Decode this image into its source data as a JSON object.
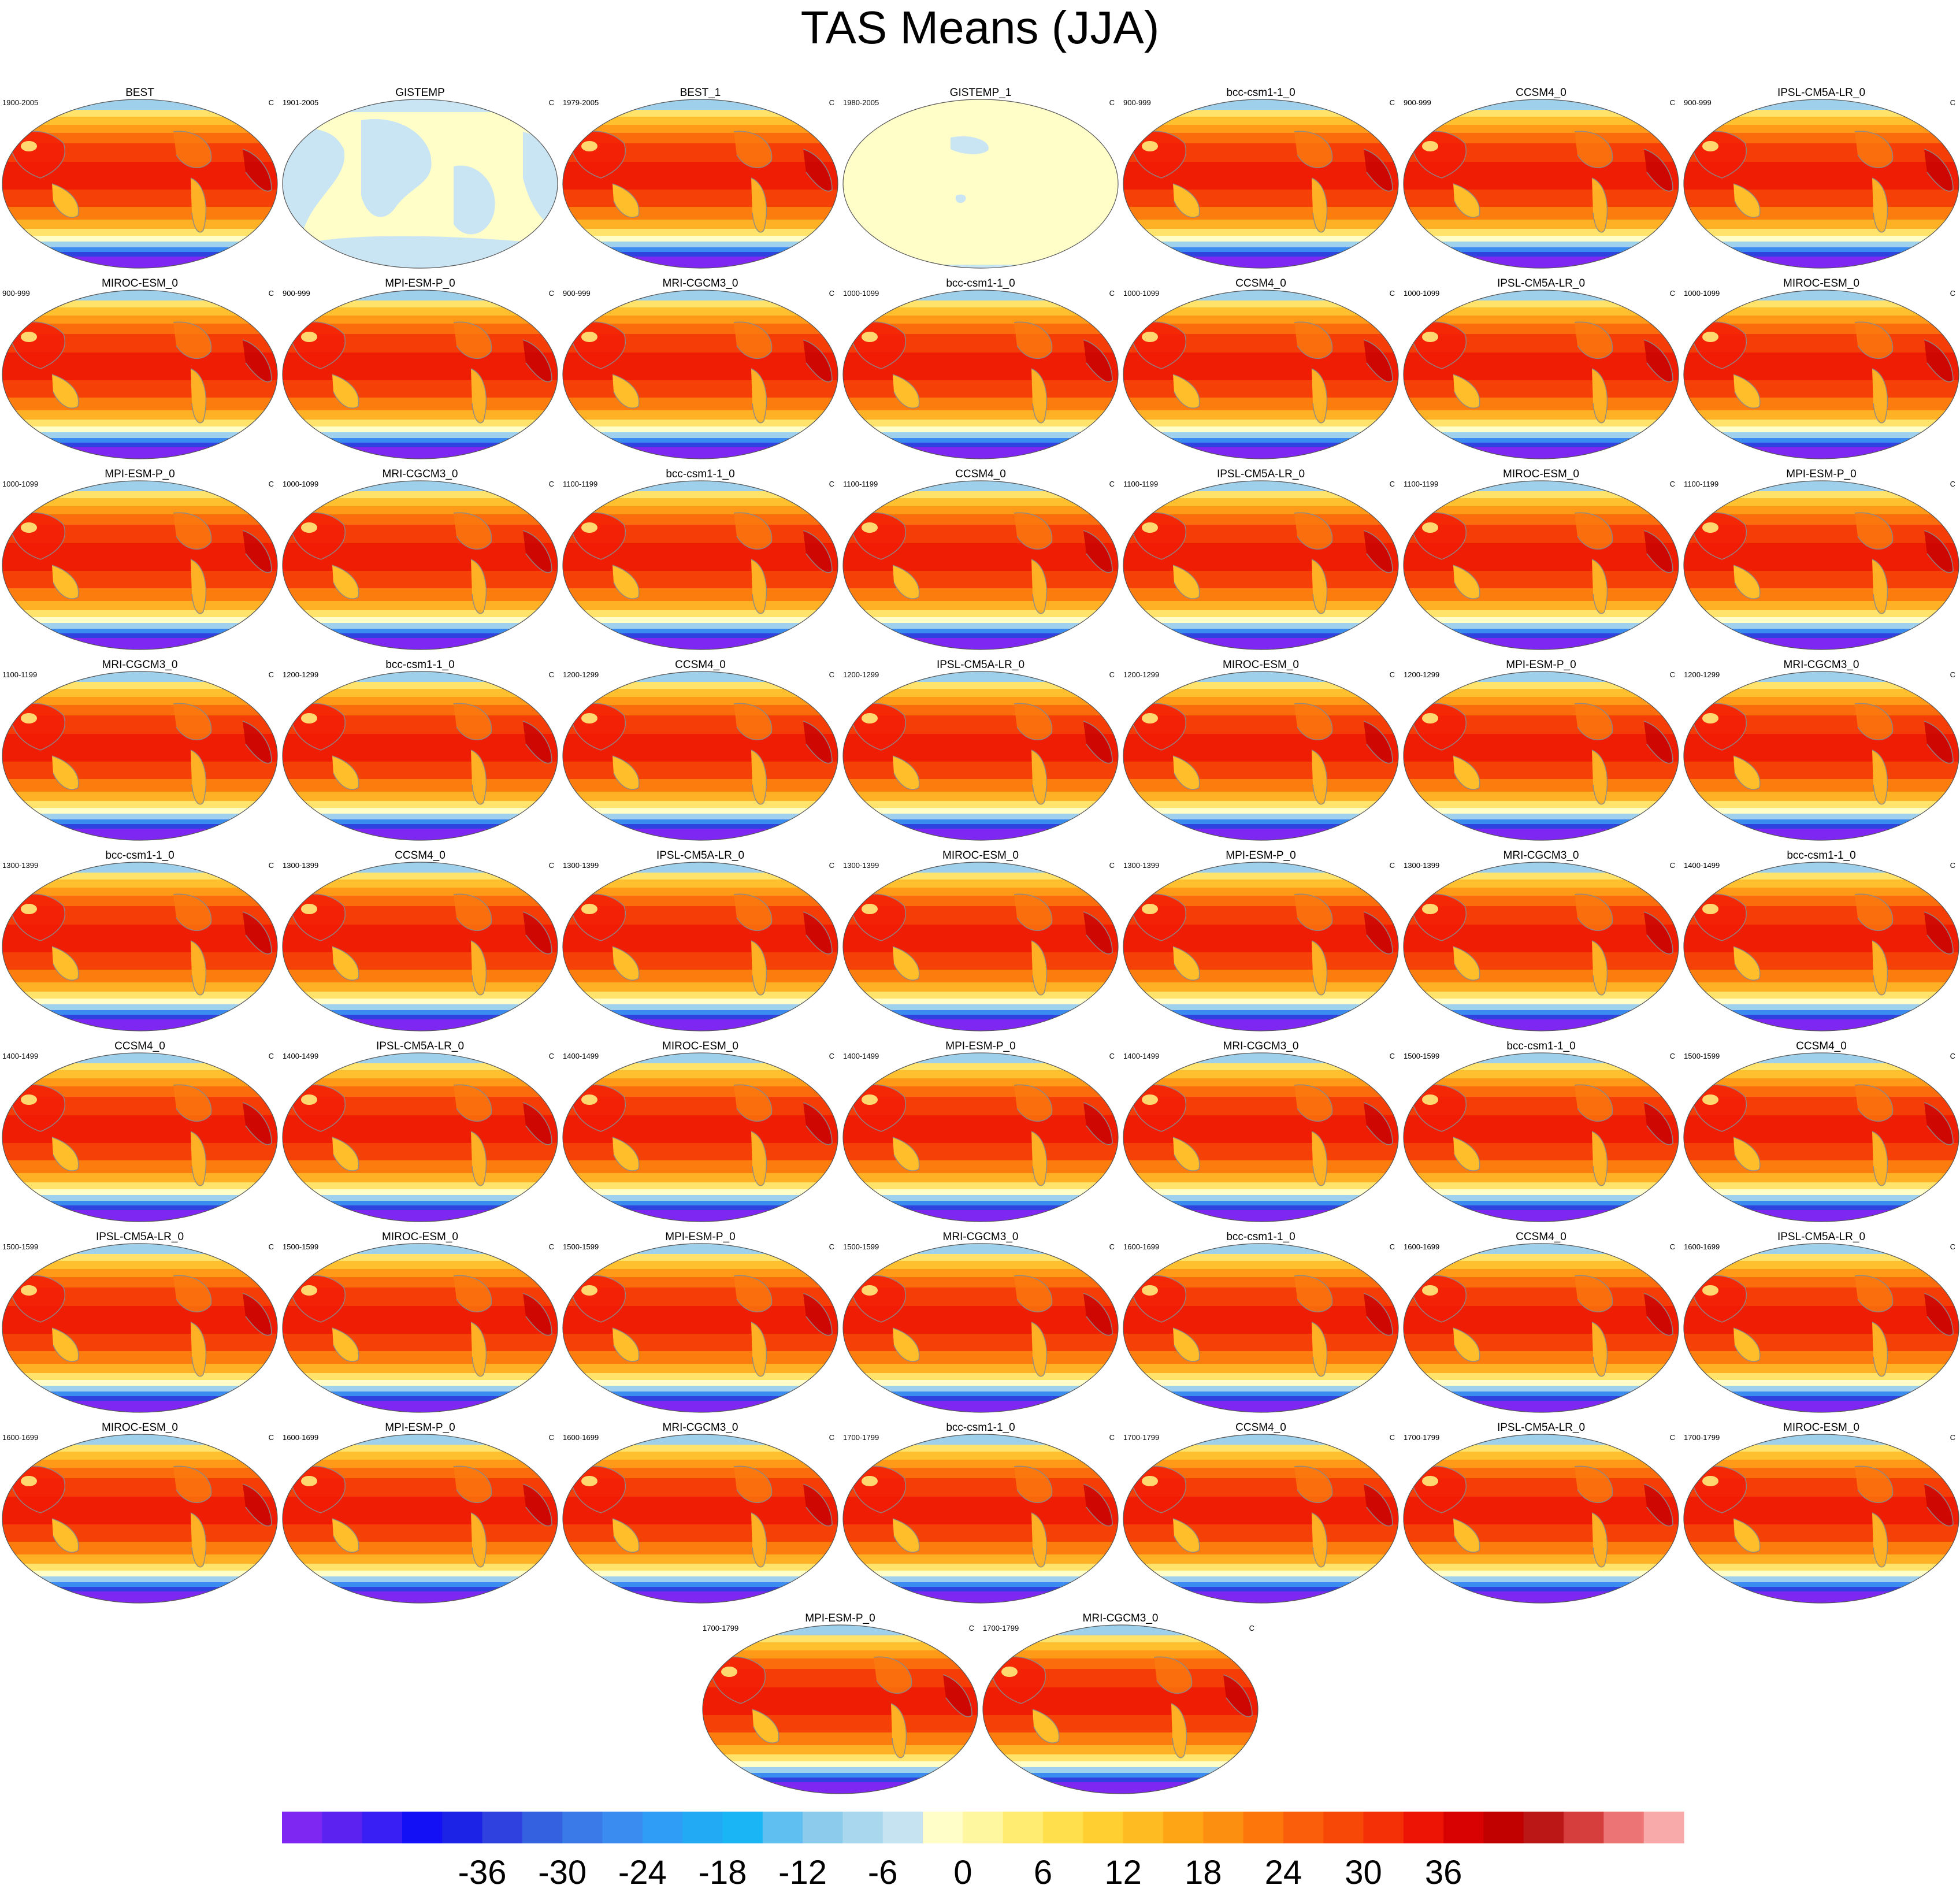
{
  "title": "TAS Means (JJA)",
  "units": "C",
  "panels": [
    {
      "name": "BEST",
      "period": "1900-2005",
      "style": "obs"
    },
    {
      "name": "GISTEMP",
      "period": "1901-2005",
      "style": "gis"
    },
    {
      "name": "BEST_1",
      "period": "1979-2005",
      "style": "obs"
    },
    {
      "name": "GISTEMP_1",
      "period": "1980-2005",
      "style": "gis2"
    },
    {
      "name": "bcc-csm1-1_0",
      "period": "900-999",
      "style": "model"
    },
    {
      "name": "CCSM4_0",
      "period": "900-999",
      "style": "model"
    },
    {
      "name": "IPSL-CM5A-LR_0",
      "period": "900-999",
      "style": "model"
    },
    {
      "name": "MIROC-ESM_0",
      "period": "900-999",
      "style": "model"
    },
    {
      "name": "MPI-ESM-P_0",
      "period": "900-999",
      "style": "model"
    },
    {
      "name": "MRI-CGCM3_0",
      "period": "900-999",
      "style": "model"
    },
    {
      "name": "bcc-csm1-1_0",
      "period": "1000-1099",
      "style": "model"
    },
    {
      "name": "CCSM4_0",
      "period": "1000-1099",
      "style": "model"
    },
    {
      "name": "IPSL-CM5A-LR_0",
      "period": "1000-1099",
      "style": "model"
    },
    {
      "name": "MIROC-ESM_0",
      "period": "1000-1099",
      "style": "model"
    },
    {
      "name": "MPI-ESM-P_0",
      "period": "1000-1099",
      "style": "model"
    },
    {
      "name": "MRI-CGCM3_0",
      "period": "1000-1099",
      "style": "model"
    },
    {
      "name": "bcc-csm1-1_0",
      "period": "1100-1199",
      "style": "model"
    },
    {
      "name": "CCSM4_0",
      "period": "1100-1199",
      "style": "model"
    },
    {
      "name": "IPSL-CM5A-LR_0",
      "period": "1100-1199",
      "style": "model"
    },
    {
      "name": "MIROC-ESM_0",
      "period": "1100-1199",
      "style": "model"
    },
    {
      "name": "MPI-ESM-P_0",
      "period": "1100-1199",
      "style": "model"
    },
    {
      "name": "MRI-CGCM3_0",
      "period": "1100-1199",
      "style": "model"
    },
    {
      "name": "bcc-csm1-1_0",
      "period": "1200-1299",
      "style": "model"
    },
    {
      "name": "CCSM4_0",
      "period": "1200-1299",
      "style": "model"
    },
    {
      "name": "IPSL-CM5A-LR_0",
      "period": "1200-1299",
      "style": "model"
    },
    {
      "name": "MIROC-ESM_0",
      "period": "1200-1299",
      "style": "model"
    },
    {
      "name": "MPI-ESM-P_0",
      "period": "1200-1299",
      "style": "model"
    },
    {
      "name": "MRI-CGCM3_0",
      "period": "1200-1299",
      "style": "model"
    },
    {
      "name": "bcc-csm1-1_0",
      "period": "1300-1399",
      "style": "model"
    },
    {
      "name": "CCSM4_0",
      "period": "1300-1399",
      "style": "model"
    },
    {
      "name": "IPSL-CM5A-LR_0",
      "period": "1300-1399",
      "style": "model"
    },
    {
      "name": "MIROC-ESM_0",
      "period": "1300-1399",
      "style": "model"
    },
    {
      "name": "MPI-ESM-P_0",
      "period": "1300-1399",
      "style": "model"
    },
    {
      "name": "MRI-CGCM3_0",
      "period": "1300-1399",
      "style": "model"
    },
    {
      "name": "bcc-csm1-1_0",
      "period": "1400-1499",
      "style": "model"
    },
    {
      "name": "CCSM4_0",
      "period": "1400-1499",
      "style": "model"
    },
    {
      "name": "IPSL-CM5A-LR_0",
      "period": "1400-1499",
      "style": "model"
    },
    {
      "name": "MIROC-ESM_0",
      "period": "1400-1499",
      "style": "model"
    },
    {
      "name": "MPI-ESM-P_0",
      "period": "1400-1499",
      "style": "model"
    },
    {
      "name": "MRI-CGCM3_0",
      "period": "1400-1499",
      "style": "model"
    },
    {
      "name": "bcc-csm1-1_0",
      "period": "1500-1599",
      "style": "model"
    },
    {
      "name": "CCSM4_0",
      "period": "1500-1599",
      "style": "model"
    },
    {
      "name": "IPSL-CM5A-LR_0",
      "period": "1500-1599",
      "style": "model"
    },
    {
      "name": "MIROC-ESM_0",
      "period": "1500-1599",
      "style": "model"
    },
    {
      "name": "MPI-ESM-P_0",
      "period": "1500-1599",
      "style": "model"
    },
    {
      "name": "MRI-CGCM3_0",
      "period": "1500-1599",
      "style": "model"
    },
    {
      "name": "bcc-csm1-1_0",
      "period": "1600-1699",
      "style": "model"
    },
    {
      "name": "CCSM4_0",
      "period": "1600-1699",
      "style": "model"
    },
    {
      "name": "IPSL-CM5A-LR_0",
      "period": "1600-1699",
      "style": "model"
    },
    {
      "name": "MIROC-ESM_0",
      "period": "1600-1699",
      "style": "model"
    },
    {
      "name": "MPI-ESM-P_0",
      "period": "1600-1699",
      "style": "model"
    },
    {
      "name": "MRI-CGCM3_0",
      "period": "1600-1699",
      "style": "model"
    },
    {
      "name": "bcc-csm1-1_0",
      "period": "1700-1799",
      "style": "model"
    },
    {
      "name": "CCSM4_0",
      "period": "1700-1799",
      "style": "model"
    },
    {
      "name": "IPSL-CM5A-LR_0",
      "period": "1700-1799",
      "style": "model"
    },
    {
      "name": "MIROC-ESM_0",
      "period": "1700-1799",
      "style": "model"
    },
    {
      "name": "MPI-ESM-P_0",
      "period": "1700-1799",
      "style": "model"
    },
    {
      "name": "MRI-CGCM3_0",
      "period": "1700-1799",
      "style": "model"
    }
  ],
  "colorbar": {
    "colors": [
      "#7e26f2",
      "#5b22f0",
      "#3a1ff5",
      "#1310f5",
      "#1c23e6",
      "#2f42e0",
      "#3461e0",
      "#3a7ae8",
      "#3b8cf0",
      "#2f9cf5",
      "#23aaf5",
      "#1ab5f5",
      "#5fbff0",
      "#8dcbec",
      "#a9d7ee",
      "#c5e3f1",
      "#fffdc8",
      "#fff7a0",
      "#ffec70",
      "#ffe04c",
      "#ffcf32",
      "#ffbb22",
      "#fea516",
      "#fd8f10",
      "#fc760c",
      "#fa5e0a",
      "#f74808",
      "#f43006",
      "#ed1305",
      "#d80202",
      "#c10000",
      "#bb1717",
      "#d63e3e",
      "#ec7474",
      "#f8a9a9"
    ],
    "tick_labels": [
      "-36",
      "-30",
      "-24",
      "-18",
      "-12",
      "-6",
      "0",
      "6",
      "12",
      "18",
      "24",
      "30",
      "36"
    ],
    "tick_values": [
      -36,
      -30,
      -24,
      -18,
      -12,
      -6,
      0,
      6,
      12,
      18,
      24,
      30,
      36
    ],
    "min": -51,
    "step": 3
  }
}
